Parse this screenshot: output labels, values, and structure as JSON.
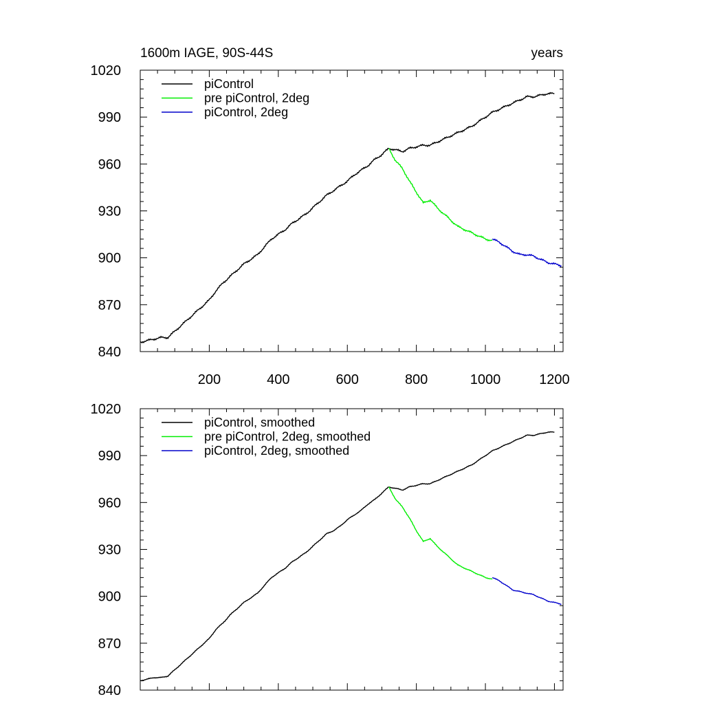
{
  "chart_data": [
    {
      "type": "line",
      "title_left": "1600m IAGE, 90S-44S",
      "title_right": "years",
      "xlim": [
        0,
        1225
      ],
      "ylim": [
        840,
        1020
      ],
      "x_ticks": [
        200,
        400,
        600,
        800,
        1000,
        1200
      ],
      "y_ticks": [
        840,
        870,
        900,
        930,
        960,
        990,
        1020
      ],
      "x_tick_labels_visible": true,
      "grid": false,
      "legend_position": "top-left",
      "series": [
        {
          "name": "piControl",
          "color": "#000000",
          "x": [
            0,
            20,
            40,
            60,
            80,
            100,
            120,
            140,
            160,
            180,
            200,
            220,
            240,
            260,
            280,
            300,
            320,
            340,
            360,
            380,
            400,
            420,
            440,
            460,
            480,
            500,
            520,
            540,
            560,
            580,
            600,
            620,
            640,
            660,
            680,
            700,
            720,
            740,
            760,
            780,
            800,
            820,
            840,
            860,
            880,
            900,
            920,
            940,
            960,
            980,
            1000,
            1020,
            1040,
            1060,
            1080,
            1100,
            1120,
            1140,
            1160,
            1180,
            1200
          ],
          "values": [
            846,
            847,
            848,
            849,
            849,
            853,
            857,
            861,
            865,
            869,
            873,
            879,
            884,
            888,
            892,
            896,
            899,
            902,
            907,
            912,
            915,
            918,
            922,
            925,
            928,
            932,
            936,
            940,
            943,
            946,
            949,
            953,
            956,
            959,
            963,
            966,
            970,
            969,
            968,
            970,
            971,
            972,
            972,
            974,
            976,
            978,
            980,
            982,
            984,
            987,
            990,
            993,
            995,
            997,
            999,
            1001,
            1003,
            1003,
            1004,
            1005,
            1005
          ]
        },
        {
          "name": "pre piControl, 2deg",
          "color": "#00ee00",
          "x": [
            720,
            740,
            760,
            780,
            800,
            820,
            840,
            860,
            880,
            900,
            920,
            940,
            960,
            980,
            1000,
            1020
          ],
          "values": [
            970,
            962,
            957,
            949,
            942,
            935,
            937,
            932,
            928,
            924,
            920,
            918,
            916,
            914,
            912,
            911
          ]
        },
        {
          "name": "piControl, 2deg",
          "color": "#0000cc",
          "x": [
            1020,
            1040,
            1060,
            1080,
            1100,
            1120,
            1140,
            1160,
            1180,
            1200,
            1220
          ],
          "values": [
            912,
            910,
            907,
            904,
            902,
            902,
            901,
            899,
            897,
            896,
            895
          ]
        }
      ]
    },
    {
      "type": "line",
      "xlim": [
        0,
        1225
      ],
      "ylim": [
        840,
        1020
      ],
      "x_ticks": [
        200,
        400,
        600,
        800,
        1000,
        1200
      ],
      "y_ticks": [
        840,
        870,
        900,
        930,
        960,
        990,
        1020
      ],
      "x_tick_labels_visible": false,
      "grid": false,
      "legend_position": "top-left",
      "series": [
        {
          "name": "piControl, smoothed",
          "color": "#000000",
          "x": [
            0,
            20,
            40,
            60,
            80,
            100,
            120,
            140,
            160,
            180,
            200,
            220,
            240,
            260,
            280,
            300,
            320,
            340,
            360,
            380,
            400,
            420,
            440,
            460,
            480,
            500,
            520,
            540,
            560,
            580,
            600,
            620,
            640,
            660,
            680,
            700,
            720,
            740,
            760,
            780,
            800,
            820,
            840,
            860,
            880,
            900,
            920,
            940,
            960,
            980,
            1000,
            1020,
            1040,
            1060,
            1080,
            1100,
            1120,
            1140,
            1160,
            1180,
            1200
          ],
          "values": [
            846,
            847,
            848,
            848,
            849,
            853,
            857,
            861,
            865,
            869,
            873,
            879,
            883,
            888,
            892,
            896,
            899,
            902,
            907,
            912,
            915,
            918,
            922,
            925,
            928,
            932,
            936,
            940,
            942,
            945,
            949,
            952,
            955,
            959,
            962,
            966,
            970,
            969,
            968,
            970,
            971,
            972,
            972,
            974,
            976,
            978,
            980,
            982,
            984,
            987,
            990,
            993,
            995,
            997,
            999,
            1001,
            1003,
            1003,
            1004,
            1005,
            1005
          ]
        },
        {
          "name": "pre piControl, 2deg, smoothed",
          "color": "#00ee00",
          "x": [
            720,
            740,
            760,
            780,
            800,
            820,
            840,
            860,
            880,
            900,
            920,
            940,
            960,
            980,
            1000,
            1020
          ],
          "values": [
            970,
            962,
            957,
            950,
            942,
            935,
            937,
            932,
            928,
            924,
            920,
            918,
            916,
            914,
            912,
            911
          ]
        },
        {
          "name": "piControl, 2deg, smoothed",
          "color": "#0000cc",
          "x": [
            1020,
            1040,
            1060,
            1080,
            1100,
            1120,
            1140,
            1160,
            1180,
            1200,
            1220
          ],
          "values": [
            912,
            910,
            907,
            904,
            903,
            902,
            901,
            899,
            897,
            896,
            895
          ]
        }
      ]
    }
  ]
}
